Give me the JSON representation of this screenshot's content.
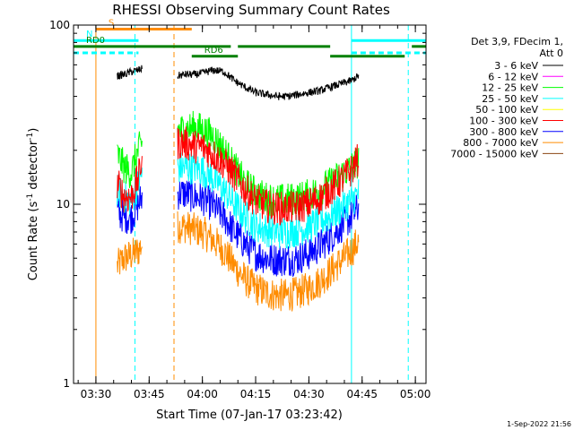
{
  "chart_data": {
    "type": "line",
    "title": "RHESSI Observing Summary Count Rates",
    "xlabel": "Start Time (07-Jan-17 03:23:42)",
    "ylabel": "Count Rate (s⁻¹ detector⁻¹)",
    "ylabel_main": "Count Rate (s",
    "ylabel_sup1": "-1",
    "ylabel_mid": " detector",
    "ylabel_sup2": "-1",
    "ylabel_end": ")",
    "yscale": "log",
    "ylim": [
      1,
      100
    ],
    "xlim": [
      "03:23:42",
      "05:03:00"
    ],
    "x_ticks": [
      "03:30",
      "03:45",
      "04:00",
      "04:15",
      "04:30",
      "04:45",
      "05:00"
    ],
    "y_ticks": [
      "1",
      "10",
      "100"
    ],
    "legend_header": [
      "Det 3,9, FDecim 1,",
      "Att 0"
    ],
    "series": [
      {
        "name": "3 - 6 keV",
        "color": "#000000",
        "segments": [
          {
            "x": [
              "03:36",
              "03:38",
              "03:40",
              "03:42",
              "03:43"
            ],
            "y": [
              52,
              53,
              55,
              56,
              57
            ]
          },
          {
            "x": [
              "03:53",
              "03:55",
              "03:58",
              "04:00",
              "04:03",
              "04:06",
              "04:09",
              "04:12",
              "04:15",
              "04:18",
              "04:21",
              "04:24",
              "04:27",
              "04:30",
              "04:33",
              "04:36",
              "04:39",
              "04:42",
              "04:44"
            ],
            "y": [
              52,
              53,
              53,
              54,
              56,
              55,
              49,
              45,
              42,
              41,
              40,
              40,
              41,
              42,
              43,
              45,
              47,
              49,
              52
            ]
          }
        ]
      },
      {
        "name": "6 - 12 keV",
        "color": "#ff00ff",
        "segments": []
      },
      {
        "name": "12 - 25 keV",
        "color": "#00ff00",
        "segments": [
          {
            "x": [
              "03:36",
              "03:38",
              "03:40",
              "03:42",
              "03:43"
            ],
            "y": [
              19,
              16,
              15,
              20,
              22
            ]
          },
          {
            "x": [
              "03:53",
              "03:55",
              "03:58",
              "04:00",
              "04:03",
              "04:06",
              "04:09",
              "04:12",
              "04:15",
              "04:18",
              "04:21",
              "04:24",
              "04:27",
              "04:30",
              "04:33",
              "04:36",
              "04:39",
              "04:42",
              "04:44"
            ],
            "y": [
              26,
              26,
              27,
              26,
              24,
              20,
              16,
              13,
              11.5,
              10.8,
              10.5,
              10.6,
              10.8,
              11.2,
              12,
              13,
              14.5,
              16,
              17.5
            ]
          }
        ]
      },
      {
        "name": "25 - 50 keV",
        "color": "#00ffff",
        "segments": [
          {
            "x": [
              "03:36",
              "03:38",
              "03:40",
              "03:42",
              "03:43"
            ],
            "y": [
              12,
              11,
              10.5,
              13,
              15
            ]
          },
          {
            "x": [
              "03:53",
              "03:55",
              "03:58",
              "04:00",
              "04:03",
              "04:06",
              "04:09",
              "04:12",
              "04:15",
              "04:18",
              "04:21",
              "04:24",
              "04:27",
              "04:30",
              "04:33",
              "04:36",
              "04:39",
              "04:42",
              "04:44"
            ],
            "y": [
              16,
              16,
              16,
              15.5,
              14,
              12,
              10,
              8.5,
              7.6,
              7.2,
              7,
              7,
              7.2,
              7.5,
              8,
              8.6,
              9.5,
              10.5,
              11.5
            ]
          }
        ]
      },
      {
        "name": "50 - 100 keV",
        "color": "#ffff00",
        "segments": []
      },
      {
        "name": "100 - 300 keV",
        "color": "#ff0000",
        "segments": [
          {
            "x": [
              "03:36",
              "03:38",
              "03:40",
              "03:42",
              "03:43"
            ],
            "y": [
              13,
              11,
              11,
              14,
              18
            ]
          },
          {
            "x": [
              "03:53",
              "03:55",
              "03:58",
              "04:00",
              "04:03",
              "04:06",
              "04:09",
              "04:12",
              "04:15",
              "04:18",
              "04:21",
              "04:24",
              "04:27",
              "04:30",
              "04:33",
              "04:36",
              "04:39",
              "04:42",
              "04:44"
            ],
            "y": [
              22,
              22,
              21,
              21,
              19,
              17,
              14.5,
              12,
              10.5,
              9.8,
              9.5,
              9.5,
              9.7,
              10,
              10.8,
              12,
              13.5,
              15.5,
              18
            ]
          }
        ]
      },
      {
        "name": "300 - 800 keV",
        "color": "#0000ff",
        "segments": [
          {
            "x": [
              "03:36",
              "03:38",
              "03:40",
              "03:42",
              "03:43"
            ],
            "y": [
              9,
              8.5,
              8.5,
              10,
              11
            ]
          },
          {
            "x": [
              "03:53",
              "03:55",
              "03:58",
              "04:00",
              "04:03",
              "04:06",
              "04:09",
              "04:12",
              "04:15",
              "04:18",
              "04:21",
              "04:24",
              "04:27",
              "04:30",
              "04:33",
              "04:36",
              "04:39",
              "04:42",
              "04:44"
            ],
            "y": [
              11.5,
              11.5,
              11,
              10.8,
              9.8,
              8.5,
              7,
              6,
              5.3,
              5,
              4.9,
              4.9,
              5,
              5.3,
              5.8,
              6.5,
              7.5,
              8.5,
              9.5
            ]
          }
        ]
      },
      {
        "name": "800 - 7000 keV",
        "color": "#ff8c00",
        "segments": [
          {
            "x": [
              "03:36",
              "03:38",
              "03:40",
              "03:42",
              "03:43"
            ],
            "y": [
              4.5,
              5,
              5.2,
              5.5,
              6
            ]
          },
          {
            "x": [
              "03:53",
              "03:55",
              "03:58",
              "04:00",
              "04:03",
              "04:06",
              "04:09",
              "04:12",
              "04:15",
              "04:18",
              "04:21",
              "04:24",
              "04:27",
              "04:30",
              "04:33",
              "04:36",
              "04:39",
              "04:42",
              "04:44"
            ],
            "y": [
              7.5,
              7.5,
              7.2,
              7,
              6.3,
              5.5,
              4.5,
              3.8,
              3.4,
              3.2,
              3.1,
              3.1,
              3.2,
              3.4,
              3.7,
              4.2,
              4.8,
              5.5,
              6.2
            ]
          }
        ]
      },
      {
        "name": "7000 - 15000 keV",
        "color": "#8b4513",
        "segments": []
      }
    ],
    "state_bars": [
      {
        "label": "S",
        "color": "#ff8c00",
        "level": 95,
        "x": [
          "03:30",
          "03:57"
        ],
        "dashed": false
      },
      {
        "label": "N",
        "color": "#00ffff",
        "level": 82,
        "x": [
          "03:23:42",
          "03:42"
        ],
        "dashed": false
      },
      {
        "label": "",
        "color": "#00ffff",
        "level": 82,
        "x": [
          "04:42",
          "05:03"
        ],
        "dashed": false
      },
      {
        "label": "",
        "color": "#00ffff",
        "level": 70,
        "x": [
          "03:23:42",
          "03:42"
        ],
        "dashed": true
      },
      {
        "label": "",
        "color": "#00ffff",
        "level": 70,
        "x": [
          "04:42",
          "05:03"
        ],
        "dashed": true
      },
      {
        "label": "RD0",
        "color": "#008000",
        "level": 76,
        "x": [
          "03:23:42",
          "04:08"
        ],
        "dashed": false
      },
      {
        "label": "",
        "color": "#008000",
        "level": 76,
        "x": [
          "04:10",
          "04:36"
        ],
        "dashed": false
      },
      {
        "label": "",
        "color": "#008000",
        "level": 76,
        "x": [
          "04:59",
          "05:03"
        ],
        "dashed": false
      },
      {
        "label": "RD6",
        "color": "#008000",
        "level": 67,
        "x": [
          "03:57",
          "04:10"
        ],
        "dashed": false
      },
      {
        "label": "",
        "color": "#008000",
        "level": 67,
        "x": [
          "04:36",
          "04:57"
        ],
        "dashed": false
      }
    ],
    "vlines": [
      {
        "x": "03:23:42",
        "color": "#00ffff",
        "dashed": false
      },
      {
        "x": "03:30",
        "color": "#ff8c00",
        "dashed": false
      },
      {
        "x": "03:41",
        "color": "#00ffff",
        "dashed": true
      },
      {
        "x": "03:52",
        "color": "#ff8c00",
        "dashed": true
      },
      {
        "x": "04:42",
        "color": "#00ffff",
        "dashed": false
      },
      {
        "x": "04:58",
        "color": "#00ffff",
        "dashed": true
      }
    ],
    "footer": "1-Sep-2022 21:56"
  }
}
